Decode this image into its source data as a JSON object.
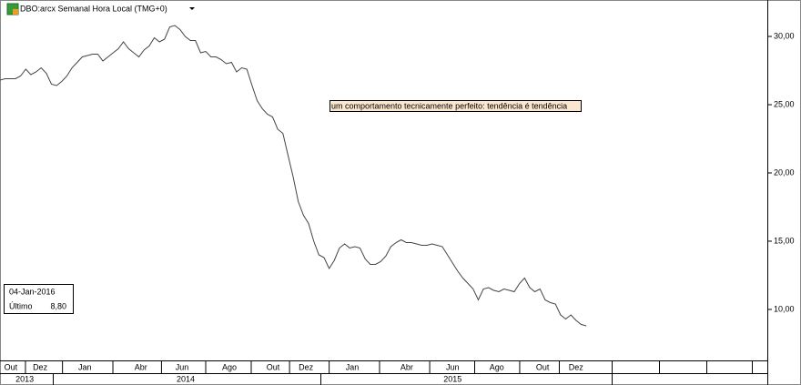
{
  "chart_data": {
    "type": "line",
    "title": "DBO:arcx Semanal Hora Local (TMG+0)",
    "annotation": "um comportamento tecnicamente perfeito: tendência é tendência",
    "last": {
      "date": "04-Jan-2016",
      "label": "Último",
      "value_label": "8,80"
    },
    "color": "#444444",
    "values": [
      26.8,
      26.9,
      26.9,
      26.9,
      27.1,
      27.6,
      27.2,
      27.4,
      27.7,
      27.3,
      26.5,
      26.4,
      26.7,
      27.1,
      27.7,
      28.1,
      28.5,
      28.6,
      28.7,
      28.7,
      28.2,
      28.5,
      28.8,
      29.1,
      29.6,
      29.1,
      28.8,
      28.5,
      29.0,
      29.3,
      29.9,
      29.6,
      29.8,
      30.7,
      30.8,
      30.5,
      30.0,
      29.7,
      29.7,
      28.8,
      28.9,
      28.5,
      28.5,
      28.3,
      28.0,
      28.1,
      27.4,
      27.7,
      27.6,
      26.4,
      25.3,
      24.7,
      24.3,
      24.1,
      23.2,
      22.9,
      21.3,
      19.7,
      17.9,
      16.9,
      16.3,
      15.0,
      14.0,
      13.8,
      13.0,
      13.6,
      14.5,
      14.8,
      14.5,
      14.6,
      14.5,
      13.7,
      13.3,
      13.3,
      13.5,
      13.9,
      14.6,
      14.9,
      15.1,
      14.9,
      14.9,
      14.8,
      14.7,
      14.7,
      14.8,
      14.7,
      14.6,
      14.0,
      13.4,
      12.8,
      12.3,
      11.9,
      11.5,
      10.7,
      11.5,
      11.6,
      11.4,
      11.3,
      11.5,
      11.4,
      11.3,
      11.9,
      12.3,
      11.6,
      11.3,
      11.5,
      10.7,
      10.5,
      10.4,
      9.6,
      9.3,
      9.6,
      9.2,
      8.9,
      8.8
    ],
    "xlim": [
      0,
      149.2
    ],
    "xticks": [
      {
        "value": 2.1,
        "label": "Out"
      },
      {
        "value": 7.8,
        "label": "Dez"
      },
      {
        "value": 16.5,
        "label": "Jan"
      },
      {
        "value": 27.4,
        "label": "Abr"
      },
      {
        "value": 35.4,
        "label": "Jun"
      },
      {
        "value": 44.6,
        "label": "Ago"
      },
      {
        "value": 53.1,
        "label": "Out"
      },
      {
        "value": 59.5,
        "label": "Dez"
      },
      {
        "value": 68.5,
        "label": "Jan"
      },
      {
        "value": 79.1,
        "label": "Abr"
      },
      {
        "value": 88,
        "label": "Jun"
      },
      {
        "value": 96.6,
        "label": "Ago"
      },
      {
        "value": 105.5,
        "label": "Out"
      },
      {
        "value": 112,
        "label": "Dez"
      }
    ],
    "years": [
      {
        "value": 4.8,
        "label": "2013"
      },
      {
        "value": 36.1,
        "label": "2014"
      },
      {
        "value": 88,
        "label": "2015"
      }
    ],
    "ylim": [
      6.33,
      32.67
    ],
    "yticks": [
      {
        "value": 10,
        "label": "10,00"
      },
      {
        "value": 15,
        "label": "15,00"
      },
      {
        "value": 20,
        "label": "20,00"
      },
      {
        "value": 25,
        "label": "25,00"
      },
      {
        "value": 30,
        "label": "30,00"
      }
    ]
  }
}
